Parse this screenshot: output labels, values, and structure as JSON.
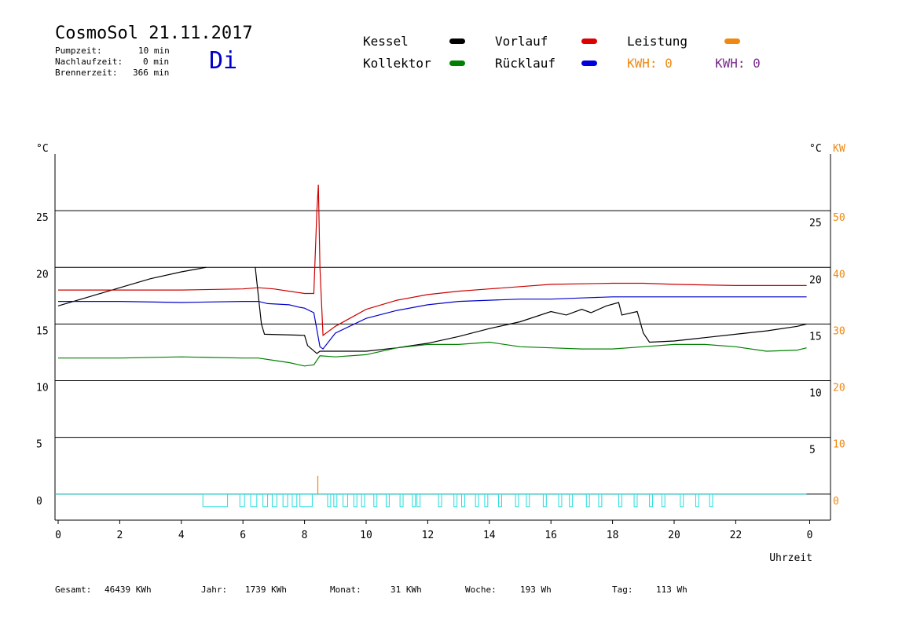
{
  "header": {
    "title": "CosmoSol 21.11.2017",
    "day": "Di",
    "pumpzeit_label": "Pumpzeit:",
    "pumpzeit_value": "10 min",
    "nachlauf_label": "Nachlaufzeit:",
    "nachlauf_value": "0 min",
    "brenner_label": "Brennerzeit:",
    "brenner_value": "366 min"
  },
  "legend": {
    "kessel": "Kessel",
    "kollektor": "Kollektor",
    "vorlauf": "Vorlauf",
    "ruecklauf": "Rücklauf",
    "leistung": "Leistung",
    "kwh1": "KWH: 0",
    "kwh2": "KWH: 0"
  },
  "colors": {
    "kessel": "#000000",
    "kollektor": "#008000",
    "vorlauf": "#cc0000",
    "ruecklauf": "#0000cc",
    "leistung": "#ee8811",
    "kwh2": "#7a2a8a",
    "pump": "#22dddd"
  },
  "footer": {
    "gesamt_label": "Gesamt:",
    "gesamt_value": "46439 KWh",
    "jahr_label": "Jahr:",
    "jahr_value": "1739 KWh",
    "monat_label": "Monat:",
    "monat_value": "31 KWh",
    "woche_label": "Woche:",
    "woche_value": "193 Wh",
    "tag_label": "Tag:",
    "tag_value": "113 Wh"
  },
  "chart_data": {
    "type": "line",
    "xlabel": "Uhrzeit",
    "ylabel_left": "°C",
    "ylabel_right": "°C",
    "ylabel_right2": "KW",
    "x_ticks": [
      "0",
      "2",
      "4",
      "6",
      "8",
      "10",
      "12",
      "14",
      "16",
      "18",
      "20",
      "22",
      "0"
    ],
    "xlim": [
      0,
      25
    ],
    "ylim": [
      -2.3,
      30
    ],
    "y_ticks_left": [
      0,
      5,
      10,
      15,
      20,
      25
    ],
    "y_ticks_right": [
      5,
      10,
      15,
      20,
      25
    ],
    "y_ticks_kw": [
      0,
      10,
      20,
      30,
      40,
      50
    ],
    "grid": "horizontal",
    "series": [
      {
        "name": "Kessel",
        "key": "kessel",
        "points": [
          [
            0,
            16.6
          ],
          [
            1,
            17.4
          ],
          [
            2,
            18.2
          ],
          [
            3,
            19
          ],
          [
            4,
            19.6
          ],
          [
            4.8,
            20
          ],
          [
            4.8,
            null
          ],
          [
            6.4,
            null
          ],
          [
            6.4,
            20
          ],
          [
            6.6,
            15
          ],
          [
            6.7,
            14.1
          ],
          [
            8,
            14
          ],
          [
            8.1,
            13.1
          ],
          [
            8.4,
            12.4
          ],
          [
            8.5,
            12.6
          ],
          [
            9,
            12.6
          ],
          [
            10,
            12.6
          ],
          [
            11,
            12.9
          ],
          [
            12,
            13.3
          ],
          [
            13,
            13.9
          ],
          [
            14,
            14.6
          ],
          [
            15,
            15.2
          ],
          [
            16,
            16.1
          ],
          [
            16.5,
            15.8
          ],
          [
            17,
            16.3
          ],
          [
            17.3,
            16.0
          ],
          [
            17.8,
            16.6
          ],
          [
            18.2,
            16.9
          ],
          [
            18.3,
            15.8
          ],
          [
            18.8,
            16.1
          ],
          [
            19,
            14.2
          ],
          [
            19.2,
            13.4
          ],
          [
            20,
            13.5
          ],
          [
            21,
            13.8
          ],
          [
            22,
            14.1
          ],
          [
            23,
            14.4
          ],
          [
            24,
            14.8
          ],
          [
            24.3,
            15
          ]
        ]
      },
      {
        "name": "Vorlauf",
        "key": "vorlauf",
        "points": [
          [
            0,
            18
          ],
          [
            2,
            18
          ],
          [
            4,
            18.0
          ],
          [
            6,
            18.1
          ],
          [
            6.5,
            18.2
          ],
          [
            7,
            18.1
          ],
          [
            7.5,
            17.9
          ],
          [
            8,
            17.7
          ],
          [
            8.3,
            17.7
          ],
          [
            8.4,
            25
          ],
          [
            8.45,
            27.3
          ],
          [
            8.5,
            20
          ],
          [
            8.6,
            14
          ],
          [
            9,
            14.8
          ],
          [
            10,
            16.3
          ],
          [
            11,
            17.1
          ],
          [
            12,
            17.6
          ],
          [
            13,
            17.9
          ],
          [
            14,
            18.1
          ],
          [
            15,
            18.3
          ],
          [
            16,
            18.5
          ],
          [
            18,
            18.6
          ],
          [
            19,
            18.6
          ],
          [
            20,
            18.5
          ],
          [
            22,
            18.4
          ],
          [
            24,
            18.4
          ],
          [
            24.3,
            18.4
          ]
        ]
      },
      {
        "name": "Rücklauf",
        "key": "ruecklauf",
        "points": [
          [
            0,
            17
          ],
          [
            2,
            17
          ],
          [
            4,
            16.9
          ],
          [
            6,
            17
          ],
          [
            6.5,
            17
          ],
          [
            6.8,
            16.8
          ],
          [
            7.5,
            16.7
          ],
          [
            7.8,
            16.5
          ],
          [
            8,
            16.4
          ],
          [
            8.3,
            16
          ],
          [
            8.5,
            13
          ],
          [
            8.6,
            12.8
          ],
          [
            9,
            14.2
          ],
          [
            10,
            15.5
          ],
          [
            11,
            16.2
          ],
          [
            12,
            16.7
          ],
          [
            13,
            17
          ],
          [
            14,
            17.1
          ],
          [
            15,
            17.2
          ],
          [
            16,
            17.2
          ],
          [
            17,
            17.3
          ],
          [
            18,
            17.4
          ],
          [
            20,
            17.4
          ],
          [
            22,
            17.4
          ],
          [
            24,
            17.4
          ],
          [
            24.3,
            17.4
          ]
        ]
      },
      {
        "name": "Kollektor",
        "key": "kollektor",
        "points": [
          [
            0,
            12
          ],
          [
            2,
            12
          ],
          [
            4,
            12.1
          ],
          [
            6,
            12
          ],
          [
            6.5,
            12.0
          ],
          [
            7,
            11.8
          ],
          [
            7.5,
            11.6
          ],
          [
            8,
            11.3
          ],
          [
            8.3,
            11.4
          ],
          [
            8.5,
            12.2
          ],
          [
            9,
            12.1
          ],
          [
            10,
            12.3
          ],
          [
            11,
            12.9
          ],
          [
            12,
            13.2
          ],
          [
            13,
            13.2
          ],
          [
            14,
            13.4
          ],
          [
            15,
            13.0
          ],
          [
            16,
            12.9
          ],
          [
            17,
            12.8
          ],
          [
            18,
            12.8
          ],
          [
            19,
            13
          ],
          [
            20,
            13.2
          ],
          [
            21,
            13.2
          ],
          [
            22,
            13
          ],
          [
            23,
            12.6
          ],
          [
            24,
            12.7
          ],
          [
            24.3,
            12.9
          ]
        ]
      },
      {
        "name": "Leistung",
        "key": "leistung",
        "points": [
          [
            8.43,
            0
          ],
          [
            8.43,
            1.6
          ]
        ]
      }
    ],
    "pump_on": [
      [
        4.7,
        5.5
      ],
      [
        5.9,
        6.05
      ],
      [
        6.25,
        6.45
      ],
      [
        6.65,
        6.8
      ],
      [
        6.95,
        7.1
      ],
      [
        7.3,
        7.45
      ],
      [
        7.6,
        7.75
      ],
      [
        7.85,
        8.25
      ],
      [
        8.75,
        8.85
      ],
      [
        8.95,
        9.05
      ],
      [
        9.25,
        9.4
      ],
      [
        9.6,
        9.7
      ],
      [
        9.85,
        9.95
      ],
      [
        10.25,
        10.35
      ],
      [
        10.65,
        10.75
      ],
      [
        11.1,
        11.2
      ],
      [
        11.5,
        11.6
      ],
      [
        11.65,
        11.75
      ],
      [
        12.35,
        12.45
      ],
      [
        12.85,
        12.95
      ],
      [
        13.1,
        13.2
      ],
      [
        13.55,
        13.65
      ],
      [
        13.85,
        13.95
      ],
      [
        14.3,
        14.4
      ],
      [
        14.85,
        14.95
      ],
      [
        15.2,
        15.3
      ],
      [
        15.75,
        15.85
      ],
      [
        16.25,
        16.35
      ],
      [
        16.6,
        16.7
      ],
      [
        17.15,
        17.25
      ],
      [
        17.55,
        17.65
      ],
      [
        18.2,
        18.3
      ],
      [
        18.7,
        18.8
      ],
      [
        19.2,
        19.3
      ],
      [
        19.6,
        19.7
      ],
      [
        20.2,
        20.3
      ],
      [
        20.7,
        20.8
      ],
      [
        21.15,
        21.25
      ]
    ]
  }
}
